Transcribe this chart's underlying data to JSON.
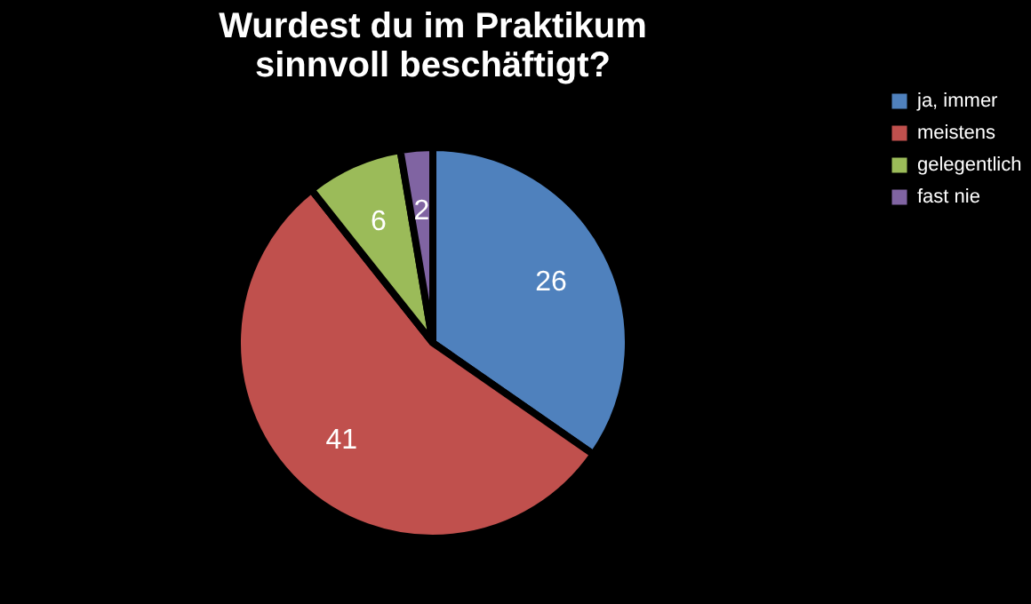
{
  "chart_data": {
    "type": "pie",
    "title": "Wurdest du im Praktikum sinnvoll beschäftigt?",
    "categories": [
      "ja, immer",
      "meistens",
      "gelegentlich",
      "fast nie"
    ],
    "values": [
      26,
      41,
      6,
      2
    ],
    "colors": [
      "#4f81bd",
      "#c0504d",
      "#9bbb59",
      "#8064a2"
    ],
    "data_labels": true,
    "legend": "right"
  }
}
